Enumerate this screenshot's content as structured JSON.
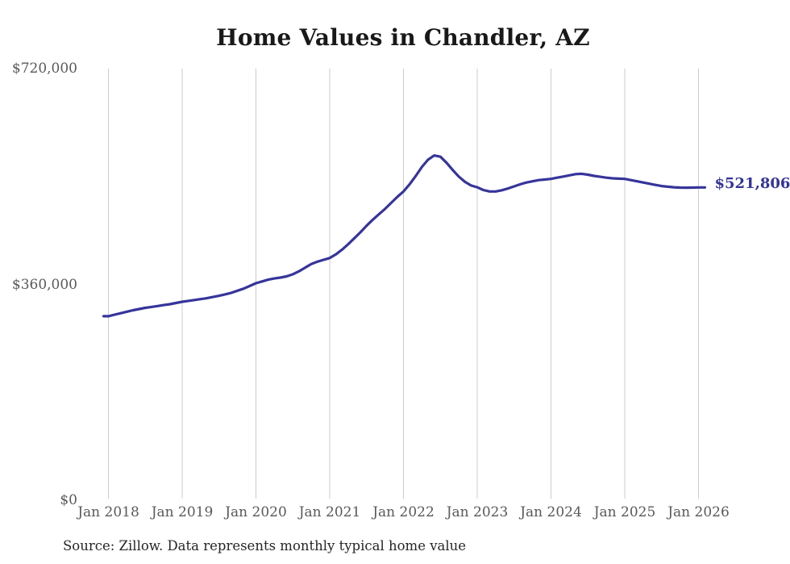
{
  "title": "Home Values in Chandler, AZ",
  "source_note": "Source: Zillow. Data represents monthly typical home value",
  "colors": {
    "line": "#37349b",
    "end_label": "#333399",
    "gridline": "#cccccc",
    "axis_text": "#595959",
    "title_text": "#191919",
    "background": "#ffffff"
  },
  "chart_data": {
    "type": "line",
    "title": "Home Values in Chandler, AZ",
    "xlabel": "",
    "ylabel": "",
    "ylim": [
      0,
      720000
    ],
    "grid": "vertical-only",
    "legend": "none",
    "x_ticks": [
      "Jan 2018",
      "Jan 2019",
      "Jan 2020",
      "Jan 2021",
      "Jan 2022",
      "Jan 2023",
      "Jan 2024",
      "Jan 2025",
      "Jan 2026"
    ],
    "y_ticks": [
      {
        "label": "$720,000",
        "value": 720000
      },
      {
        "label": "$360,000",
        "value": 360000
      },
      {
        "label": "$0",
        "value": 0
      }
    ],
    "end_label": "$521,806",
    "end_value": 521806,
    "series": [
      {
        "name": "Monthly typical home value",
        "x_start": "Jan 2018",
        "x_interval": "monthly",
        "values": [
          307000,
          309500,
          312000,
          314500,
          317000,
          319000,
          321000,
          322500,
          324000,
          325500,
          327000,
          329000,
          331000,
          332500,
          334000,
          335500,
          337000,
          339000,
          341000,
          343500,
          346000,
          349500,
          353000,
          357500,
          362000,
          365000,
          368000,
          370000,
          371500,
          373500,
          377000,
          382000,
          388000,
          394000,
          398000,
          401000,
          404000,
          410000,
          418000,
          427000,
          437000,
          447000,
          458000,
          468000,
          477000,
          486000,
          496000,
          506000,
          515000,
          527000,
          541000,
          556000,
          568000,
          575000,
          573000,
          563000,
          551000,
          540000,
          531000,
          525000,
          522000,
          517500,
          515000,
          515000,
          517000,
          520000,
          523500,
          527000,
          530000,
          532000,
          534000,
          535000,
          536000,
          538000,
          540000,
          542000,
          544000,
          544500,
          543000,
          541000,
          539500,
          538000,
          537000,
          536500,
          536000,
          534000,
          532000,
          530000,
          528000,
          526000,
          524000,
          523000,
          522000,
          521500,
          521300,
          521500,
          521806
        ]
      }
    ]
  }
}
